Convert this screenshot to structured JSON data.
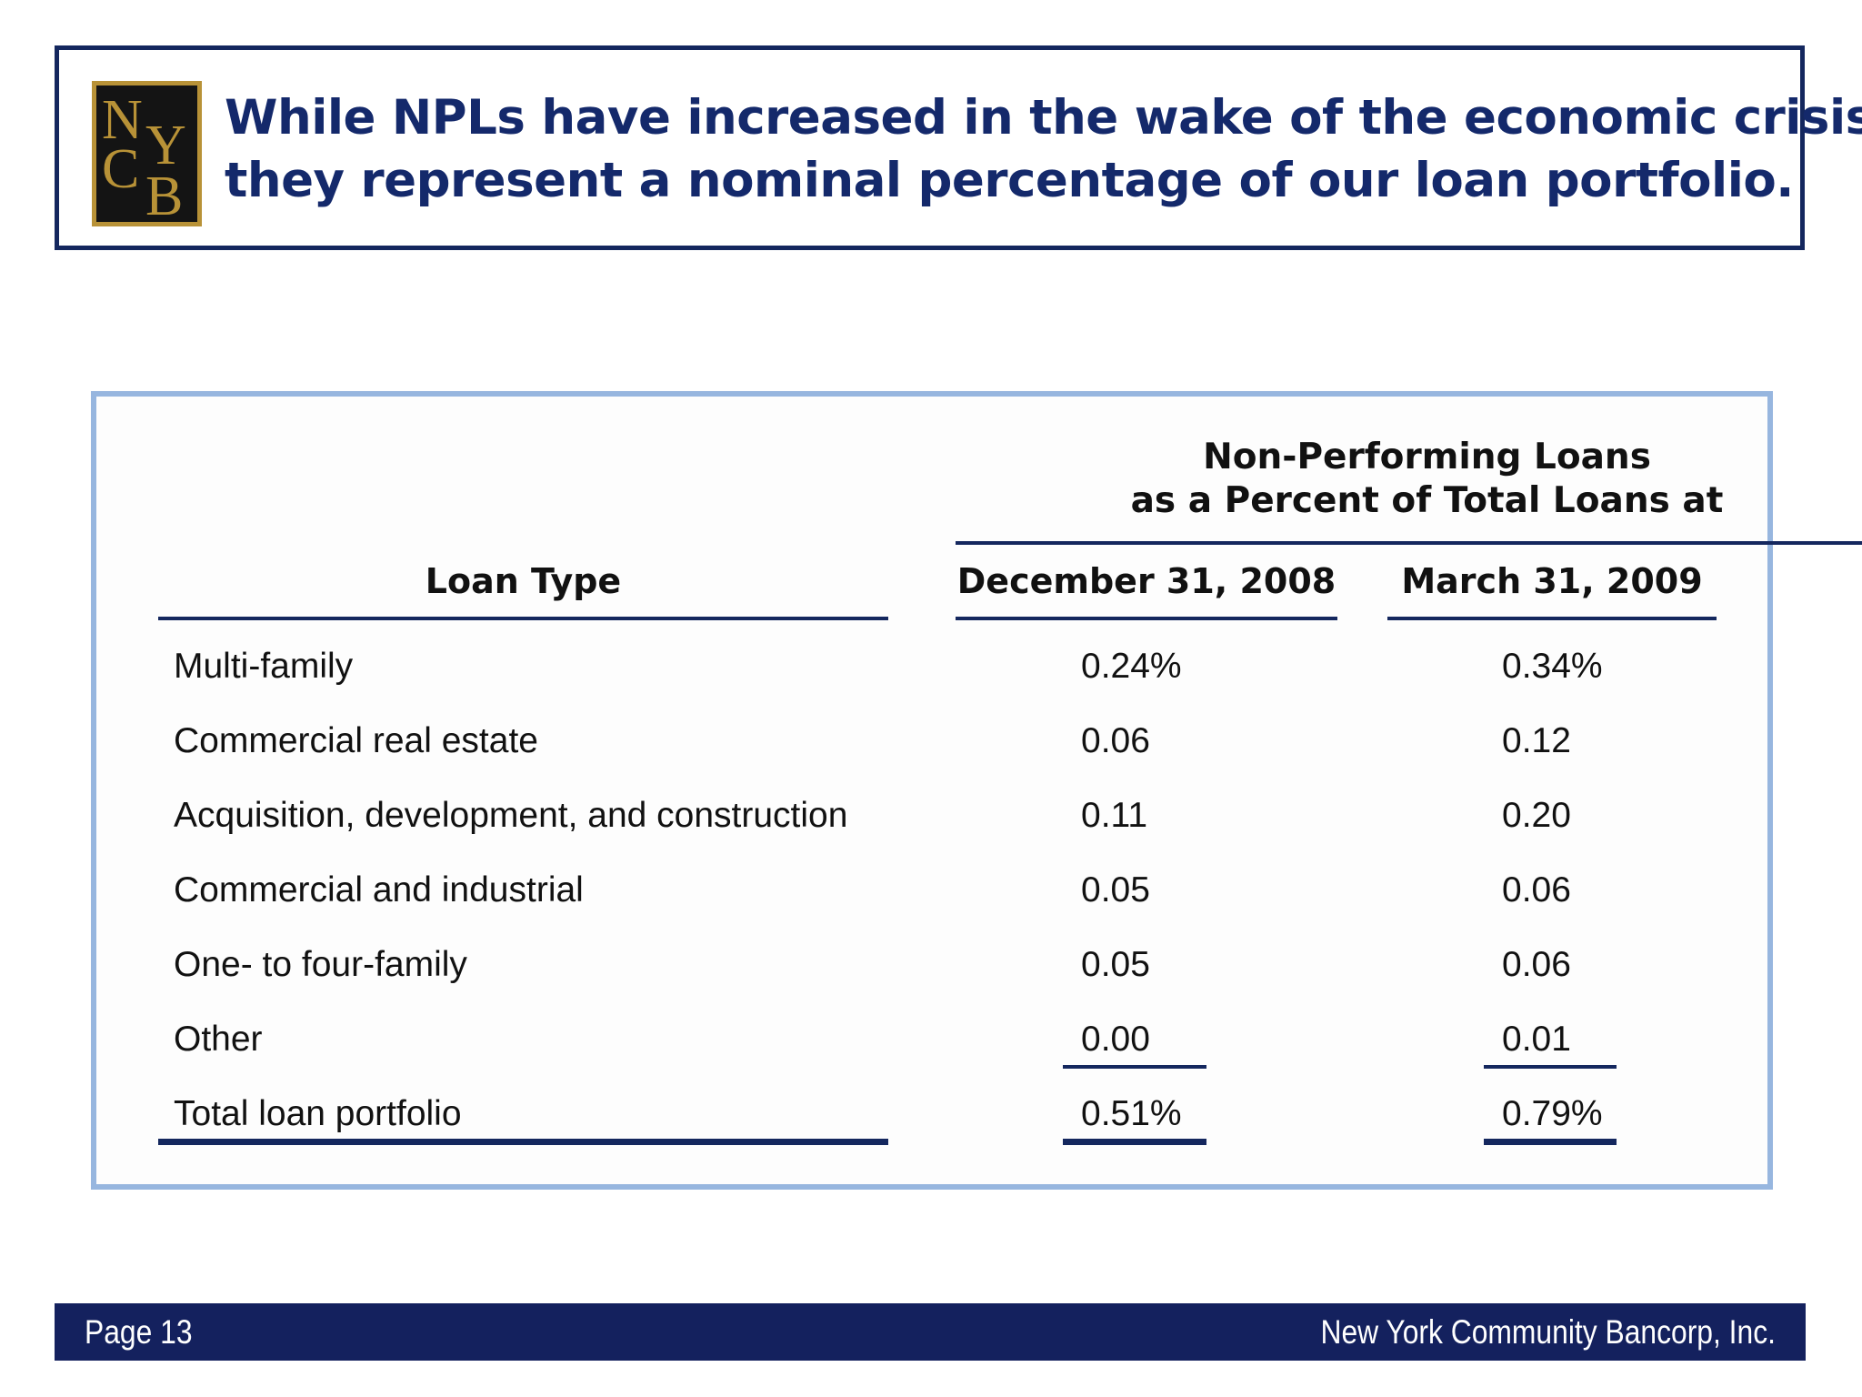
{
  "slide": {
    "title_lines": [
      "While NPLs have increased in the wake of the economic crisis,",
      "they represent a nominal percentage of our loan portfolio."
    ],
    "logo": {
      "text": "NYCB",
      "colors": {
        "background": "#141414",
        "gold": "#b89237"
      }
    }
  },
  "table": {
    "group_header_lines": [
      "Non-Performing Loans",
      "as a Percent of Total Loans at"
    ],
    "columns": [
      "Loan Type",
      "December 31, 2008",
      "March 31, 2009"
    ],
    "rows": [
      {
        "type": "Multi-family",
        "dec_2008": "0.24%",
        "mar_2009": "0.34%"
      },
      {
        "type": "Commercial real estate",
        "dec_2008": "0.06",
        "mar_2009": "0.12"
      },
      {
        "type": "Acquisition, development, and construction",
        "dec_2008": "0.11",
        "mar_2009": "0.20"
      },
      {
        "type": "Commercial and industrial",
        "dec_2008": "0.05",
        "mar_2009": "0.06"
      },
      {
        "type": "One- to four-family",
        "dec_2008": "0.05",
        "mar_2009": "0.06"
      },
      {
        "type": "Other",
        "dec_2008": "0.00",
        "mar_2009": "0.01"
      },
      {
        "type": "Total loan portfolio",
        "dec_2008": "0.51%",
        "mar_2009": "0.79%"
      }
    ]
  },
  "footer": {
    "page_label": "Page 13",
    "company": "New York Community Bancorp, Inc."
  },
  "colors": {
    "navy": "#14275e",
    "title_blue": "#14296b",
    "table_border": "#97b6df"
  }
}
